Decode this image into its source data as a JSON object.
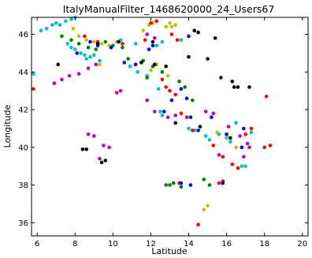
{
  "chart_data": {
    "type": "scatter",
    "title": "ItalyManualFilter_1468620000_24_Users67",
    "xlabel": "Latitude",
    "ylabel": "Longitude",
    "xlim": [
      5.7,
      20.3
    ],
    "ylim": [
      35.3,
      46.9
    ],
    "xticks": [
      6,
      8,
      10,
      12,
      14,
      16,
      18,
      20
    ],
    "yticks": [
      36,
      38,
      40,
      42,
      44,
      46
    ],
    "grid": false,
    "legend": "none",
    "series": [
      {
        "color": "#00bfbf",
        "points": [
          [
            5.8,
            43.9
          ],
          [
            6.2,
            46.2
          ],
          [
            6.5,
            46.3
          ],
          [
            6.8,
            46.5
          ],
          [
            7.0,
            46.6
          ],
          [
            7.2,
            46.5
          ],
          [
            7.5,
            46.7
          ],
          [
            7.8,
            46.8
          ],
          [
            8.0,
            46.9
          ],
          [
            7.6,
            45.5
          ],
          [
            7.8,
            45.3
          ],
          [
            8.0,
            45.2
          ],
          [
            8.3,
            45.0
          ],
          [
            8.5,
            44.9
          ],
          [
            8.8,
            44.8
          ],
          [
            9.0,
            44.9
          ],
          [
            8.6,
            44.7
          ],
          [
            9.3,
            44.6
          ],
          [
            10.9,
            44.3
          ],
          [
            11.3,
            44.0
          ],
          [
            11.8,
            43.8
          ],
          [
            12.4,
            43.1
          ],
          [
            12.5,
            41.9
          ],
          [
            12.6,
            41.7
          ],
          [
            14.0,
            41.0
          ],
          [
            14.3,
            40.9
          ],
          [
            14.9,
            40.6
          ],
          [
            15.1,
            40.4
          ],
          [
            15.6,
            40.7
          ],
          [
            16.0,
            40.5
          ],
          [
            16.2,
            40.3
          ],
          [
            16.8,
            39.0
          ],
          [
            17.0,
            39.0
          ],
          [
            16.5,
            41.3
          ],
          [
            17.3,
            40.8
          ],
          [
            10.4,
            45.7
          ],
          [
            11.2,
            45.5
          ],
          [
            12.3,
            45.4
          ],
          [
            12.6,
            45.6
          ],
          [
            13.6,
            45.7
          ]
        ]
      },
      {
        "color": "#bfbf00",
        "points": [
          [
            7.9,
            46.3
          ],
          [
            8.2,
            45.9
          ],
          [
            8.6,
            45.7
          ],
          [
            9.0,
            45.6
          ],
          [
            9.4,
            45.5
          ],
          [
            9.8,
            45.4
          ],
          [
            10.2,
            45.6
          ],
          [
            11.6,
            46.2
          ],
          [
            11.9,
            46.5
          ],
          [
            12.1,
            46.6
          ],
          [
            12.8,
            46.4
          ],
          [
            13.0,
            46.6
          ],
          [
            13.3,
            46.5
          ],
          [
            12.3,
            44.4
          ],
          [
            12.0,
            44.1
          ],
          [
            12.9,
            43.8
          ],
          [
            15.5,
            40.8
          ],
          [
            16.0,
            40.6
          ],
          [
            14.8,
            36.7
          ],
          [
            15.0,
            36.9
          ],
          [
            16.5,
            40.0
          ],
          [
            9.3,
            44.4
          ],
          [
            11.5,
            44.5
          ],
          [
            13.1,
            46.4
          ]
        ]
      },
      {
        "color": "#008000",
        "points": [
          [
            7.3,
            45.9
          ],
          [
            7.8,
            45.7
          ],
          [
            8.2,
            45.5
          ],
          [
            8.7,
            45.3
          ],
          [
            9.1,
            45.2
          ],
          [
            9.6,
            45.6
          ],
          [
            10.0,
            45.4
          ],
          [
            10.5,
            45.3
          ],
          [
            10.8,
            44.7
          ],
          [
            11.6,
            44.6
          ],
          [
            12.1,
            44.3
          ],
          [
            12.6,
            44.0
          ],
          [
            13.5,
            43.5
          ],
          [
            13.8,
            43.2
          ],
          [
            14.2,
            42.5
          ],
          [
            13.0,
            38.0
          ],
          [
            13.2,
            38.1
          ],
          [
            13.6,
            37.9
          ],
          [
            14.8,
            38.3
          ],
          [
            15.1,
            38.0
          ],
          [
            12.8,
            38.0
          ],
          [
            16.1,
            41.1
          ],
          [
            11.8,
            43.7
          ]
        ]
      },
      {
        "color": "#ff0000",
        "points": [
          [
            5.8,
            43.1
          ],
          [
            8.5,
            45.9
          ],
          [
            9.2,
            45.6
          ],
          [
            10.5,
            45.5
          ],
          [
            11.7,
            45.7
          ],
          [
            12.0,
            46.6
          ],
          [
            12.3,
            46.7
          ],
          [
            13.1,
            46.0
          ],
          [
            13.4,
            45.7
          ],
          [
            12.6,
            43.6
          ],
          [
            12.8,
            43.2
          ],
          [
            13.0,
            43.0
          ],
          [
            13.3,
            42.8
          ],
          [
            13.6,
            41.8
          ],
          [
            13.9,
            41.6
          ],
          [
            14.2,
            40.9
          ],
          [
            15.3,
            40.1
          ],
          [
            15.8,
            39.5
          ],
          [
            16.3,
            39.1
          ],
          [
            16.6,
            38.9
          ],
          [
            15.8,
            38.2
          ],
          [
            15.6,
            38.1
          ],
          [
            18.0,
            40.0
          ],
          [
            18.3,
            40.1
          ],
          [
            17.3,
            41.0
          ],
          [
            18.1,
            42.7
          ],
          [
            17.0,
            40.7
          ],
          [
            14.5,
            35.9
          ],
          [
            13.5,
            38.1
          ]
        ]
      },
      {
        "color": "#0000ff",
        "points": [
          [
            8.1,
            45.0
          ],
          [
            8.8,
            45.6
          ],
          [
            9.2,
            45.4
          ],
          [
            9.9,
            45.3
          ],
          [
            10.6,
            44.5
          ],
          [
            11.2,
            44.4
          ],
          [
            11.9,
            45.2
          ],
          [
            12.1,
            45.4
          ],
          [
            13.1,
            42.5
          ],
          [
            13.6,
            43.1
          ],
          [
            13.9,
            42.6
          ],
          [
            14.1,
            41.6
          ],
          [
            14.5,
            40.9
          ],
          [
            16.0,
            40.7
          ],
          [
            16.8,
            40.0
          ],
          [
            13.6,
            38.1
          ],
          [
            14.1,
            38.0
          ],
          [
            15.8,
            38.1
          ],
          [
            15.2,
            41.6
          ],
          [
            12.7,
            41.9
          ],
          [
            16.9,
            41.0
          ],
          [
            14.0,
            45.9
          ]
        ]
      },
      {
        "color": "#bf00bf",
        "points": [
          [
            6.9,
            43.4
          ],
          [
            7.3,
            43.6
          ],
          [
            7.7,
            43.8
          ],
          [
            8.2,
            43.9
          ],
          [
            8.7,
            44.2
          ],
          [
            9.1,
            44.4
          ],
          [
            8.7,
            40.7
          ],
          [
            9.0,
            40.6
          ],
          [
            9.5,
            40.1
          ],
          [
            9.8,
            40.0
          ],
          [
            9.3,
            39.4
          ],
          [
            10.2,
            42.9
          ],
          [
            10.4,
            43.0
          ],
          [
            11.8,
            42.5
          ],
          [
            12.2,
            41.9
          ],
          [
            12.9,
            41.6
          ],
          [
            13.3,
            41.7
          ],
          [
            14.9,
            41.9
          ],
          [
            15.3,
            41.8
          ],
          [
            16.1,
            41.1
          ],
          [
            16.7,
            40.6
          ],
          [
            17.1,
            40.2
          ],
          [
            16.9,
            39.5
          ],
          [
            17.2,
            40.0
          ],
          [
            15.6,
            39.6
          ],
          [
            11.8,
            46.0
          ],
          [
            12.2,
            45.8
          ]
        ]
      },
      {
        "color": "#000000",
        "points": [
          [
            7.1,
            44.4
          ],
          [
            8.4,
            39.9
          ],
          [
            8.6,
            39.9
          ],
          [
            9.4,
            39.2
          ],
          [
            9.6,
            39.3
          ],
          [
            9.2,
            45.5
          ],
          [
            10.3,
            45.6
          ],
          [
            11.5,
            44.5
          ],
          [
            12.2,
            44.4
          ],
          [
            12.8,
            44.3
          ],
          [
            12.1,
            45.6
          ],
          [
            14.0,
            44.8
          ],
          [
            14.3,
            46.2
          ],
          [
            14.5,
            46.1
          ],
          [
            15.4,
            45.8
          ],
          [
            15.0,
            44.7
          ],
          [
            15.7,
            43.7
          ],
          [
            16.3,
            43.5
          ],
          [
            16.4,
            43.2
          ],
          [
            16.6,
            43.2
          ],
          [
            17.2,
            43.2
          ],
          [
            16.2,
            40.5
          ],
          [
            13.3,
            41.3
          ],
          [
            14.6,
            41.1
          ]
        ]
      }
    ]
  }
}
